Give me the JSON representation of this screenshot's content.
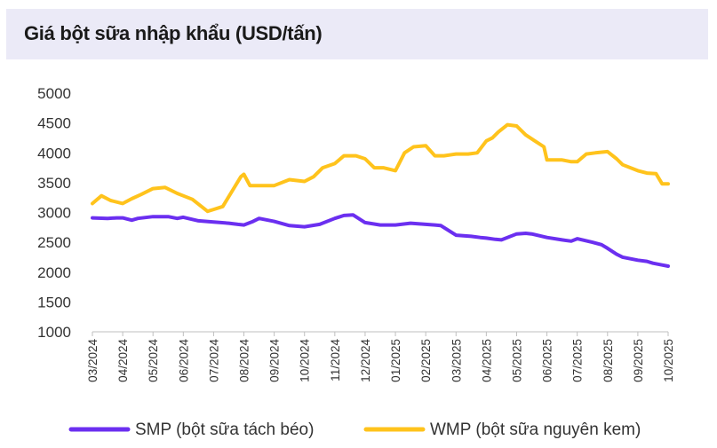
{
  "title": "Giá bột sữa nhập khẩu (USD/tấn)",
  "chart_data": {
    "type": "line",
    "title": "Giá bột sữa nhập khẩu (USD/tấn)",
    "xlabel": "",
    "ylabel": "",
    "ylim": [
      1000,
      5000
    ],
    "y_ticks": [
      1000,
      1500,
      2000,
      2500,
      3000,
      3500,
      4000,
      4500,
      5000
    ],
    "y_tick_labels": [
      "1000",
      "1500",
      "2000",
      "2500",
      "3000",
      "3500",
      "4000",
      "4500",
      "5000"
    ],
    "x_labels": [
      "03/2024",
      "04/2024",
      "05/2024",
      "06/2024",
      "07/2024",
      "08/2024",
      "09/2024",
      "10/2024",
      "11/2024",
      "12/2024",
      "01/2025",
      "02/2025",
      "03/2025",
      "04/2025",
      "05/2025",
      "06/2025",
      "07/2025",
      "08/2025",
      "09/2025",
      "10/2025"
    ],
    "x_range": [
      0,
      19
    ],
    "legend_position": "bottom",
    "series": [
      {
        "name": "SMP (bột sữa tách béo)",
        "color": "#6b2ff0",
        "x": [
          0,
          0.5,
          0.8,
          1.0,
          1.3,
          1.5,
          2.0,
          2.5,
          2.8,
          3.0,
          3.5,
          4.0,
          4.5,
          4.8,
          5.0,
          5.3,
          5.5,
          6.0,
          6.5,
          7.0,
          7.5,
          8.0,
          8.3,
          8.6,
          9.0,
          9.5,
          10.0,
          10.5,
          11.0,
          11.3,
          11.5,
          12.0,
          12.5,
          12.8,
          13.0,
          13.3,
          13.5,
          14.0,
          14.3,
          14.5,
          15.0,
          15.5,
          15.8,
          16.0,
          16.5,
          16.8,
          17.0,
          17.3,
          17.5,
          18.0,
          18.3,
          18.5,
          18.8,
          19.0
        ],
        "values": [
          2910,
          2900,
          2910,
          2910,
          2870,
          2900,
          2930,
          2930,
          2900,
          2920,
          2860,
          2840,
          2820,
          2800,
          2790,
          2850,
          2900,
          2850,
          2780,
          2760,
          2800,
          2900,
          2950,
          2960,
          2830,
          2790,
          2790,
          2820,
          2800,
          2790,
          2780,
          2620,
          2600,
          2580,
          2570,
          2550,
          2540,
          2640,
          2650,
          2640,
          2580,
          2540,
          2520,
          2560,
          2500,
          2460,
          2400,
          2300,
          2250,
          2200,
          2180,
          2150,
          2120,
          2100
        ]
      },
      {
        "name": "WMP (bột sữa nguyên kem)",
        "color": "#ffc31c",
        "x": [
          0,
          0.3,
          0.6,
          1.0,
          1.3,
          1.6,
          2.0,
          2.4,
          2.8,
          3.0,
          3.3,
          3.6,
          3.8,
          4.0,
          4.3,
          4.6,
          4.9,
          5.0,
          5.2,
          5.5,
          6.0,
          6.5,
          7.0,
          7.3,
          7.6,
          8.0,
          8.3,
          8.7,
          9.0,
          9.3,
          9.6,
          10.0,
          10.3,
          10.6,
          11.0,
          11.3,
          11.6,
          12.0,
          12.4,
          12.7,
          13.0,
          13.2,
          13.4,
          13.7,
          14.0,
          14.3,
          14.6,
          14.9,
          15.0,
          15.5,
          15.8,
          16.0,
          16.3,
          16.6,
          17.0,
          17.3,
          17.5,
          18.0,
          18.3,
          18.6,
          18.8,
          19.0
        ],
        "values": [
          3150,
          3280,
          3200,
          3150,
          3230,
          3300,
          3400,
          3420,
          3320,
          3280,
          3220,
          3100,
          3020,
          3050,
          3100,
          3350,
          3600,
          3640,
          3450,
          3450,
          3450,
          3550,
          3520,
          3600,
          3750,
          3820,
          3950,
          3950,
          3900,
          3750,
          3750,
          3700,
          4000,
          4100,
          4120,
          3950,
          3950,
          3980,
          3980,
          4000,
          4200,
          4250,
          4350,
          4470,
          4450,
          4300,
          4200,
          4100,
          3880,
          3880,
          3850,
          3850,
          3980,
          4000,
          4020,
          3900,
          3800,
          3700,
          3660,
          3650,
          3480,
          3480
        ]
      }
    ]
  }
}
